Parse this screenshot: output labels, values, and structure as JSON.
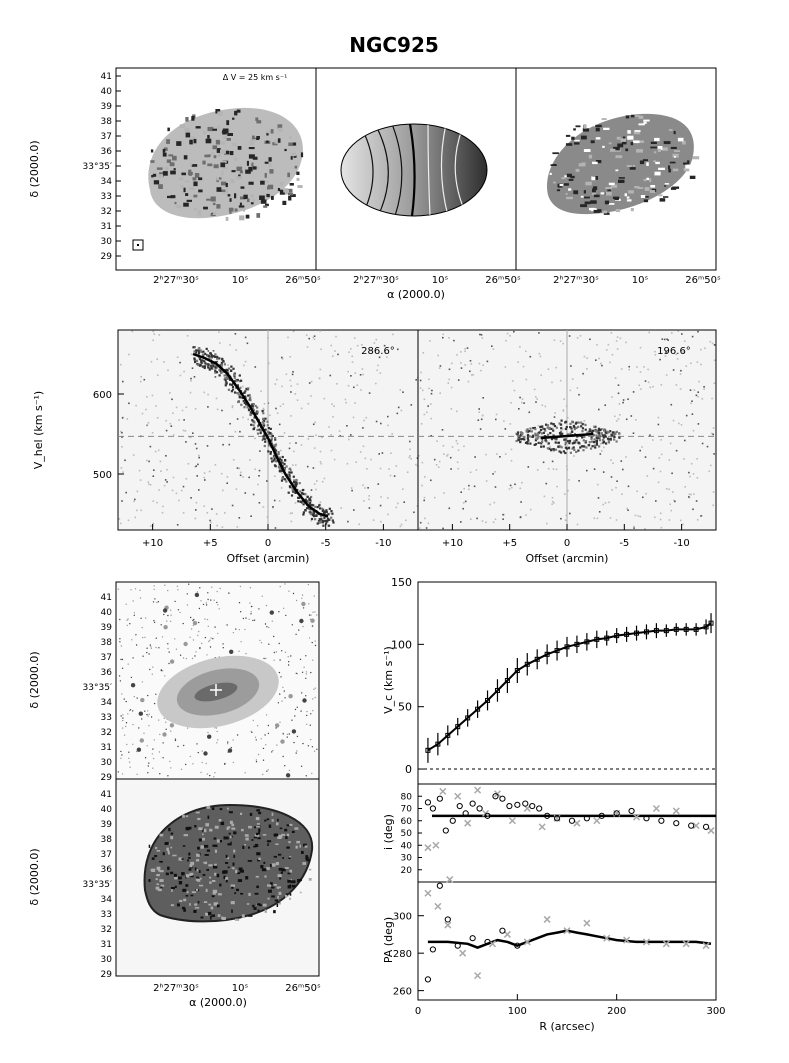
{
  "figure_title": "NGC925",
  "colors": {
    "dark": "#262626",
    "mid": "#6e6e6e",
    "light": "#b4b4b4",
    "grey_points": "#a8a8a8"
  },
  "chart_data": [
    {
      "type": "map",
      "panel": "velocity-field-maps",
      "annotation": "Δ V = 25 km s⁻¹",
      "xlabel": "α (2000.0)",
      "ylabel": "δ (2000.0)",
      "x_ticks": [
        "2ʰ27ᵐ30ˢ",
        "10ˢ",
        "26ᵐ50ˢ"
      ],
      "y_ticks": [
        "41",
        "40",
        "39",
        "38",
        "37",
        "36",
        "33°35′",
        "34",
        "33",
        "32",
        "31",
        "30",
        "29"
      ],
      "maps": [
        "observed",
        "model",
        "residual"
      ]
    },
    {
      "type": "pv-diagram",
      "panel": "position-velocity",
      "xlabel": "Offset (arcmin)",
      "ylabel": "V_hel (km s⁻¹)",
      "x_ticks": [
        "+10",
        "+5",
        "0",
        "-5",
        "-10"
      ],
      "y_ticks": [
        "600",
        "500"
      ],
      "y_tick_values": [
        600,
        500
      ],
      "ylim": [
        430,
        680
      ],
      "xlim": [
        13,
        -13
      ],
      "pa_labels": [
        "286.6°",
        "196.6°"
      ],
      "left_curve": {
        "x": [
          6.5,
          5.5,
          4.5,
          3.5,
          2.5,
          1.5,
          0.8,
          0.0,
          -0.8,
          -1.5,
          -2.5,
          -3.5,
          -4.5,
          -5.2
        ],
        "y": [
          650,
          645,
          638,
          625,
          605,
          583,
          565,
          545,
          520,
          500,
          478,
          460,
          450,
          447
        ]
      },
      "right_curve": {
        "x": [
          2.3,
          -2.3
        ],
        "y": [
          545,
          550
        ]
      },
      "systemic_velocity": 547
    },
    {
      "type": "image",
      "panel": "optical-image",
      "ylabel": "δ (2000.0)",
      "y_ticks": [
        "41",
        "40",
        "39",
        "38",
        "37",
        "36",
        "33°35′",
        "34",
        "33",
        "32",
        "31",
        "30",
        "29"
      ]
    },
    {
      "type": "image",
      "panel": "hi-map",
      "xlabel": "α (2000.0)",
      "ylabel": "δ (2000.0)",
      "x_ticks": [
        "2ʰ27ᵐ30ˢ",
        "10ˢ",
        "26ᵐ50ˢ"
      ],
      "y_ticks": [
        "41",
        "40",
        "39",
        "38",
        "37",
        "36",
        "33°35′",
        "34",
        "33",
        "32",
        "31",
        "30",
        "29"
      ]
    },
    {
      "type": "line",
      "panel": "rotation-curve",
      "ylabel": "V_c (km s⁻¹)",
      "ylim": [
        -12,
        150
      ],
      "xlim": [
        0,
        300
      ],
      "y_ticks": [
        0,
        50,
        100,
        150
      ],
      "x": [
        10,
        20,
        30,
        40,
        50,
        60,
        70,
        80,
        90,
        100,
        110,
        120,
        130,
        140,
        150,
        160,
        170,
        180,
        190,
        200,
        210,
        220,
        230,
        240,
        250,
        260,
        270,
        280,
        290,
        295
      ],
      "y": [
        15,
        20,
        27,
        34,
        41,
        48,
        55,
        63,
        71,
        79,
        84,
        88,
        92,
        95,
        98,
        100,
        102,
        104,
        105,
        107,
        108,
        109,
        110,
        111,
        111,
        112,
        112,
        112,
        114,
        117
      ],
      "err": [
        10,
        9,
        8,
        7,
        7,
        7,
        8,
        9,
        10,
        10,
        9,
        8,
        8,
        8,
        8,
        7,
        7,
        7,
        6,
        6,
        6,
        6,
        6,
        6,
        5,
        5,
        5,
        5,
        6,
        8
      ]
    },
    {
      "type": "scatter",
      "panel": "inclination",
      "ylabel": "i (deg)",
      "ylim": [
        10,
        90
      ],
      "xlim": [
        0,
        300
      ],
      "y_ticks": [
        20,
        30,
        40,
        50,
        60,
        70,
        80
      ],
      "fit_value": 64,
      "circles": {
        "x": [
          10,
          15,
          22,
          28,
          35,
          42,
          48,
          55,
          62,
          70,
          78,
          85,
          92,
          100,
          108,
          115,
          122,
          130,
          140,
          155,
          170,
          185,
          200,
          215,
          230,
          245,
          260,
          275,
          290
        ],
        "y": [
          75,
          70,
          78,
          52,
          60,
          72,
          66,
          74,
          70,
          64,
          80,
          78,
          72,
          73,
          74,
          72,
          70,
          64,
          62,
          60,
          62,
          64,
          66,
          68,
          62,
          60,
          58,
          56,
          55
        ]
      },
      "crosses": {
        "x": [
          10,
          18,
          25,
          32,
          40,
          50,
          60,
          68,
          80,
          95,
          110,
          125,
          140,
          160,
          180,
          200,
          220,
          240,
          260,
          280,
          295
        ],
        "y": [
          38,
          40,
          84,
          12,
          80,
          58,
          85,
          66,
          82,
          60,
          70,
          55,
          62,
          58,
          60,
          66,
          63,
          70,
          68,
          56,
          52
        ]
      }
    },
    {
      "type": "scatter",
      "panel": "position-angle",
      "ylabel": "PA (deg)",
      "xlabel": "R (arcsec)",
      "ylim": [
        255,
        318
      ],
      "xlim": [
        0,
        300
      ],
      "y_ticks": [
        260,
        280,
        300
      ],
      "x_ticks": [
        0,
        100,
        200,
        300
      ],
      "fit": {
        "x": [
          10,
          30,
          50,
          60,
          70,
          80,
          90,
          100,
          110,
          120,
          130,
          140,
          150,
          160,
          170,
          180,
          190,
          200,
          220,
          240,
          260,
          280,
          295
        ],
        "y": [
          286,
          286,
          285,
          283,
          285,
          287,
          286,
          284,
          286,
          288,
          290,
          291,
          292,
          291,
          290,
          289,
          288,
          287,
          286,
          286,
          286,
          286,
          285
        ]
      },
      "circles": {
        "x": [
          10,
          15,
          22,
          30,
          40,
          55,
          70,
          85,
          100
        ],
        "y": [
          266,
          282,
          316,
          298,
          284,
          288,
          286,
          292,
          284
        ]
      },
      "crosses": {
        "x": [
          10,
          20,
          30,
          45,
          60,
          75,
          90,
          110,
          130,
          150,
          170,
          190,
          210,
          230,
          250,
          270,
          290
        ],
        "y": [
          312,
          305,
          295,
          280,
          268,
          285,
          290,
          286,
          298,
          292,
          296,
          288,
          287,
          286,
          285,
          285,
          284
        ]
      }
    }
  ]
}
